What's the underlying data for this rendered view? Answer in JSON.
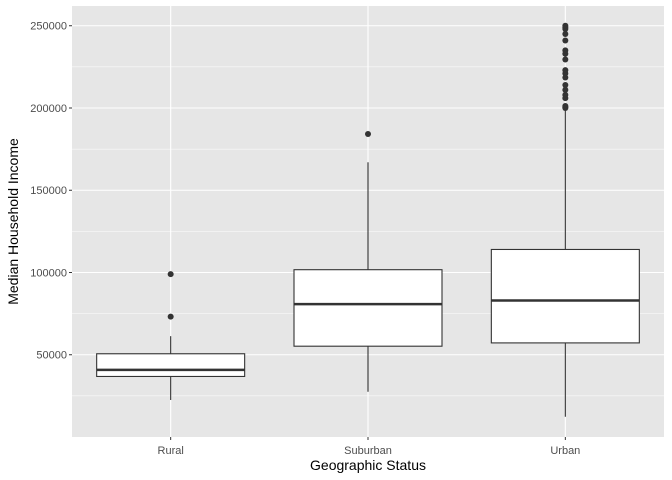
{
  "chart_data": {
    "type": "boxplot",
    "title": "",
    "xlabel": "Geographic Status",
    "ylabel": "Median Household Income",
    "categories": [
      "Rural",
      "Suburban",
      "Urban"
    ],
    "ylim": [
      0,
      262000
    ],
    "y_ticks": [
      50000,
      100000,
      150000,
      200000,
      250000
    ],
    "y_tick_labels": [
      "50000",
      "100000",
      "150000",
      "200000",
      "250000"
    ],
    "grid": true,
    "colors": {
      "panel_background": "#e6e6e6",
      "grid_line": "#ffffff",
      "box_fill": "#ffffff",
      "box_stroke": "#333333",
      "outlier": "#333333"
    },
    "boxes": [
      {
        "category": "Rural",
        "lower_whisker": 22500,
        "q1": 36800,
        "median": 40800,
        "q3": 50600,
        "upper_whisker": 61300,
        "outliers": [
          73200,
          99000
        ]
      },
      {
        "category": "Suburban",
        "lower_whisker": 27500,
        "q1": 55200,
        "median": 80800,
        "q3": 101700,
        "upper_whisker": 167000,
        "outliers": [
          184200
        ]
      },
      {
        "category": "Urban",
        "lower_whisker": 12300,
        "q1": 57200,
        "median": 83000,
        "q3": 114000,
        "upper_whisker": 198500,
        "outliers": [
          200000,
          200500,
          201200,
          206000,
          208000,
          211000,
          214000,
          218500,
          221000,
          223000,
          229500,
          233000,
          235000,
          241000,
          245000,
          248000,
          249000,
          250000
        ]
      }
    ]
  }
}
